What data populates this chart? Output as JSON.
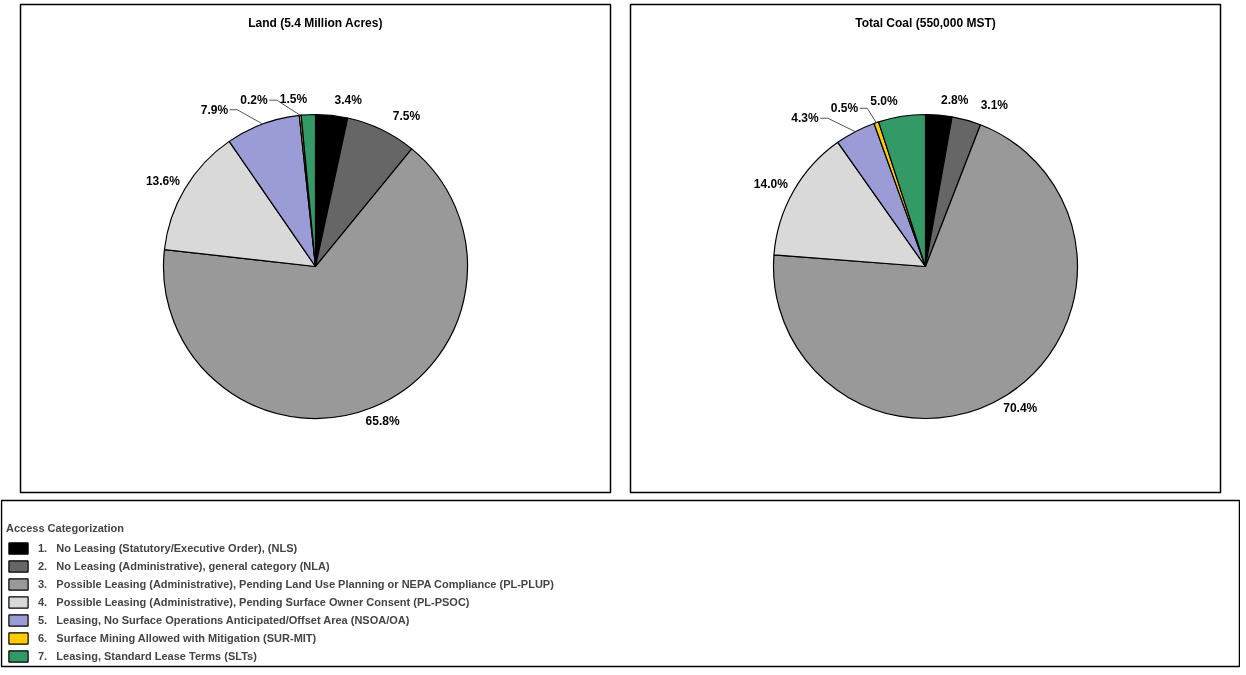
{
  "chart_data": [
    {
      "type": "pie",
      "title": "Land (5.4 Million Acres)",
      "legend": "bottom",
      "legend_title": "Access Categorization",
      "categories": [
        "1.   No Leasing (Statutory/Executive Order), (NLS)",
        "2.   No Leasing (Administrative), general category (NLA)",
        "3.   Possible Leasing (Administrative), Pending Land Use Planning or NEPA Compliance (PL-PLUP)",
        "4.   Possible Leasing (Administrative), Pending Surface Owner Consent (PL-PSOC)",
        "5.   Leasing, No Surface Operations Anticipated/Offset Area (NSOA/OA)",
        "6.   Surface Mining Allowed with Mitigation (SUR-MIT)",
        "7.   Leasing, Standard Lease Terms (SLTs)"
      ],
      "values": [
        3.4,
        7.5,
        65.8,
        13.6,
        7.9,
        0.2,
        1.5
      ],
      "value_labels": [
        "3.4%",
        "7.5%",
        "65.8%",
        "13.6%",
        "7.9%",
        "0.2%",
        "1.5%"
      ],
      "colors": [
        "#000000",
        "#666666",
        "#999999",
        "#d9d9d9",
        "#9b9bd6",
        "#ffcc00",
        "#339966"
      ]
    },
    {
      "type": "pie",
      "title": "Total Coal (550,000 MST)",
      "values": [
        2.8,
        3.1,
        70.4,
        14.0,
        4.3,
        0.5,
        5.0
      ],
      "value_labels": [
        "2.8%",
        "3.1%",
        "70.4%",
        "14.0%",
        "4.3%",
        "0.5%",
        "5.0%"
      ],
      "colors": [
        "#000000",
        "#666666",
        "#999999",
        "#d9d9d9",
        "#9b9bd6",
        "#ffcc00",
        "#339966"
      ]
    }
  ]
}
